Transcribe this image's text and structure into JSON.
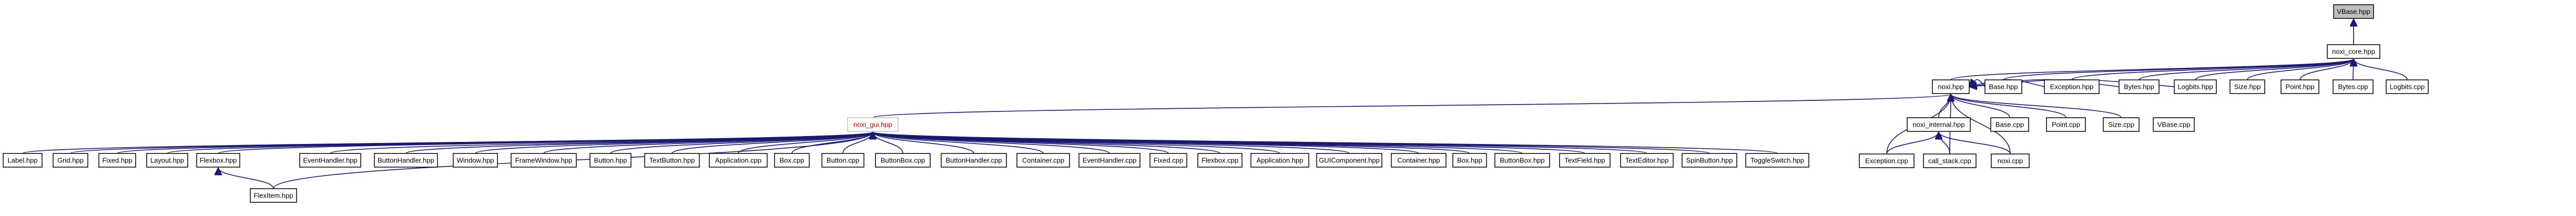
{
  "diagram": {
    "nodes": [
      {
        "id": "vbase_hpp",
        "label": "VBase.hpp",
        "current": true
      },
      {
        "id": "noxi_core_hpp",
        "label": "noxi_core.hpp"
      },
      {
        "id": "base_hpp",
        "label": "Base.hpp"
      },
      {
        "id": "exception_hpp",
        "label": "Exception.hpp"
      },
      {
        "id": "bytes_hpp",
        "label": "Bytes.hpp"
      },
      {
        "id": "logbits_hpp",
        "label": "Logbits.hpp"
      },
      {
        "id": "size_hpp",
        "label": "Size.hpp"
      },
      {
        "id": "point_hpp",
        "label": "Point.hpp"
      },
      {
        "id": "bytes_cpp",
        "label": "Bytes.cpp"
      },
      {
        "id": "logbits_cpp",
        "label": "Logbits.cpp"
      },
      {
        "id": "noxi_hpp",
        "label": "noxi.hpp"
      },
      {
        "id": "base_cpp",
        "label": "Base.cpp"
      },
      {
        "id": "point_cpp",
        "label": "Point.cpp"
      },
      {
        "id": "size_cpp",
        "label": "Size.cpp"
      },
      {
        "id": "vbase_cpp",
        "label": "VBase.cpp"
      },
      {
        "id": "noxi_internal_hpp",
        "label": "noxi_internal.hpp"
      },
      {
        "id": "exception_cpp",
        "label": "Exception.cpp"
      },
      {
        "id": "call_stack_cpp",
        "label": "call_stack.cpp"
      },
      {
        "id": "noxi_cpp",
        "label": "noxi.cpp"
      },
      {
        "id": "noxi_gui_hpp",
        "label": "noxi_gui.hpp",
        "hub": true
      },
      {
        "id": "label_hpp",
        "label": "Label.hpp"
      },
      {
        "id": "grid_hpp",
        "label": "Grid.hpp"
      },
      {
        "id": "fixed_hpp",
        "label": "Fixed.hpp"
      },
      {
        "id": "layout_hpp",
        "label": "Layout.hpp"
      },
      {
        "id": "flexbox_hpp",
        "label": "Flexbox.hpp"
      },
      {
        "id": "flexitem_hpp",
        "label": "FlexItem.hpp"
      },
      {
        "id": "eventhandler_hpp",
        "label": "EventHandler.hpp"
      },
      {
        "id": "buttonhandler_hpp",
        "label": "ButtonHandler.hpp"
      },
      {
        "id": "window_hpp",
        "label": "Window.hpp"
      },
      {
        "id": "framewindow_hpp",
        "label": "FrameWindow.hpp"
      },
      {
        "id": "button_hpp",
        "label": "Button.hpp"
      },
      {
        "id": "textbutton_hpp",
        "label": "TextButton.hpp"
      },
      {
        "id": "application_cpp",
        "label": "Application.cpp"
      },
      {
        "id": "box_cpp",
        "label": "Box.cpp"
      },
      {
        "id": "button_cpp",
        "label": "Button.cpp"
      },
      {
        "id": "buttonbox_cpp",
        "label": "ButtonBox.cpp"
      },
      {
        "id": "buttonhandler_cpp",
        "label": "ButtonHandler.cpp"
      },
      {
        "id": "container_cpp",
        "label": "Container.cpp"
      },
      {
        "id": "eventhandler_cpp",
        "label": "EventHandler.cpp"
      },
      {
        "id": "fixed_cpp",
        "label": "Fixed.cpp"
      },
      {
        "id": "flexbox_cpp",
        "label": "Flexbox.cpp"
      },
      {
        "id": "application_hpp",
        "label": "Application.hpp"
      },
      {
        "id": "guicomponent_hpp",
        "label": "GUIComponent.hpp"
      },
      {
        "id": "container_hpp",
        "label": "Container.hpp"
      },
      {
        "id": "box_hpp",
        "label": "Box.hpp"
      },
      {
        "id": "buttonbox_hpp",
        "label": "ButtonBox.hpp"
      },
      {
        "id": "textfield_hpp",
        "label": "TextField.hpp"
      },
      {
        "id": "texteditor_hpp",
        "label": "TextEditor.hpp"
      },
      {
        "id": "spinbutton_hpp",
        "label": "SpinButton.hpp"
      },
      {
        "id": "toggleswitch_hpp",
        "label": "ToggleSwitch.hpp"
      }
    ],
    "edges": [
      {
        "from": "noxi_core_hpp",
        "to": "vbase_hpp"
      },
      {
        "from": "base_hpp",
        "to": "noxi_core_hpp"
      },
      {
        "from": "exception_hpp",
        "to": "noxi_core_hpp"
      },
      {
        "from": "bytes_hpp",
        "to": "noxi_core_hpp"
      },
      {
        "from": "logbits_hpp",
        "to": "noxi_core_hpp"
      },
      {
        "from": "size_hpp",
        "to": "noxi_core_hpp"
      },
      {
        "from": "point_hpp",
        "to": "noxi_core_hpp"
      },
      {
        "from": "bytes_cpp",
        "to": "noxi_core_hpp"
      },
      {
        "from": "logbits_cpp",
        "to": "noxi_core_hpp"
      },
      {
        "from": "noxi_hpp",
        "to": "noxi_core_hpp"
      },
      {
        "from": "base_hpp",
        "to": "noxi_hpp"
      },
      {
        "from": "exception_hpp",
        "to": "noxi_hpp"
      },
      {
        "from": "bytes_hpp",
        "to": "noxi_hpp"
      },
      {
        "from": "logbits_hpp",
        "to": "noxi_hpp"
      },
      {
        "from": "base_cpp",
        "to": "noxi_hpp"
      },
      {
        "from": "point_cpp",
        "to": "noxi_hpp"
      },
      {
        "from": "size_cpp",
        "to": "noxi_hpp"
      },
      {
        "from": "noxi_internal_hpp",
        "to": "noxi_hpp"
      },
      {
        "from": "exception_cpp",
        "to": "noxi_hpp"
      },
      {
        "from": "call_stack_cpp",
        "to": "noxi_hpp"
      },
      {
        "from": "noxi_cpp",
        "to": "noxi_hpp"
      },
      {
        "from": "exception_cpp",
        "to": "noxi_internal_hpp"
      },
      {
        "from": "call_stack_cpp",
        "to": "noxi_internal_hpp"
      },
      {
        "from": "noxi_cpp",
        "to": "noxi_internal_hpp"
      },
      {
        "from": "noxi_gui_hpp",
        "to": "noxi_hpp"
      },
      {
        "from": "label_hpp",
        "to": "noxi_gui_hpp"
      },
      {
        "from": "grid_hpp",
        "to": "noxi_gui_hpp"
      },
      {
        "from": "fixed_hpp",
        "to": "noxi_gui_hpp"
      },
      {
        "from": "layout_hpp",
        "to": "noxi_gui_hpp"
      },
      {
        "from": "flexbox_hpp",
        "to": "noxi_gui_hpp"
      },
      {
        "from": "flexitem_hpp",
        "to": "noxi_gui_hpp"
      },
      {
        "from": "flexitem_hpp",
        "to": "flexbox_hpp"
      },
      {
        "from": "eventhandler_hpp",
        "to": "noxi_gui_hpp"
      },
      {
        "from": "buttonhandler_hpp",
        "to": "noxi_gui_hpp"
      },
      {
        "from": "window_hpp",
        "to": "noxi_gui_hpp"
      },
      {
        "from": "framewindow_hpp",
        "to": "noxi_gui_hpp"
      },
      {
        "from": "button_hpp",
        "to": "noxi_gui_hpp"
      },
      {
        "from": "textbutton_hpp",
        "to": "noxi_gui_hpp"
      },
      {
        "from": "application_cpp",
        "to": "noxi_gui_hpp"
      },
      {
        "from": "box_cpp",
        "to": "noxi_gui_hpp"
      },
      {
        "from": "button_cpp",
        "to": "noxi_gui_hpp"
      },
      {
        "from": "buttonbox_cpp",
        "to": "noxi_gui_hpp"
      },
      {
        "from": "buttonhandler_cpp",
        "to": "noxi_gui_hpp"
      },
      {
        "from": "container_cpp",
        "to": "noxi_gui_hpp"
      },
      {
        "from": "eventhandler_cpp",
        "to": "noxi_gui_hpp"
      },
      {
        "from": "fixed_cpp",
        "to": "noxi_gui_hpp"
      },
      {
        "from": "flexbox_cpp",
        "to": "noxi_gui_hpp"
      },
      {
        "from": "application_hpp",
        "to": "noxi_gui_hpp"
      },
      {
        "from": "guicomponent_hpp",
        "to": "noxi_gui_hpp"
      },
      {
        "from": "container_hpp",
        "to": "noxi_gui_hpp"
      },
      {
        "from": "box_hpp",
        "to": "noxi_gui_hpp"
      },
      {
        "from": "buttonbox_hpp",
        "to": "noxi_gui_hpp"
      },
      {
        "from": "textfield_hpp",
        "to": "noxi_gui_hpp"
      },
      {
        "from": "texteditor_hpp",
        "to": "noxi_gui_hpp"
      },
      {
        "from": "spinbutton_hpp",
        "to": "noxi_gui_hpp"
      },
      {
        "from": "toggleswitch_hpp",
        "to": "noxi_gui_hpp"
      }
    ]
  }
}
